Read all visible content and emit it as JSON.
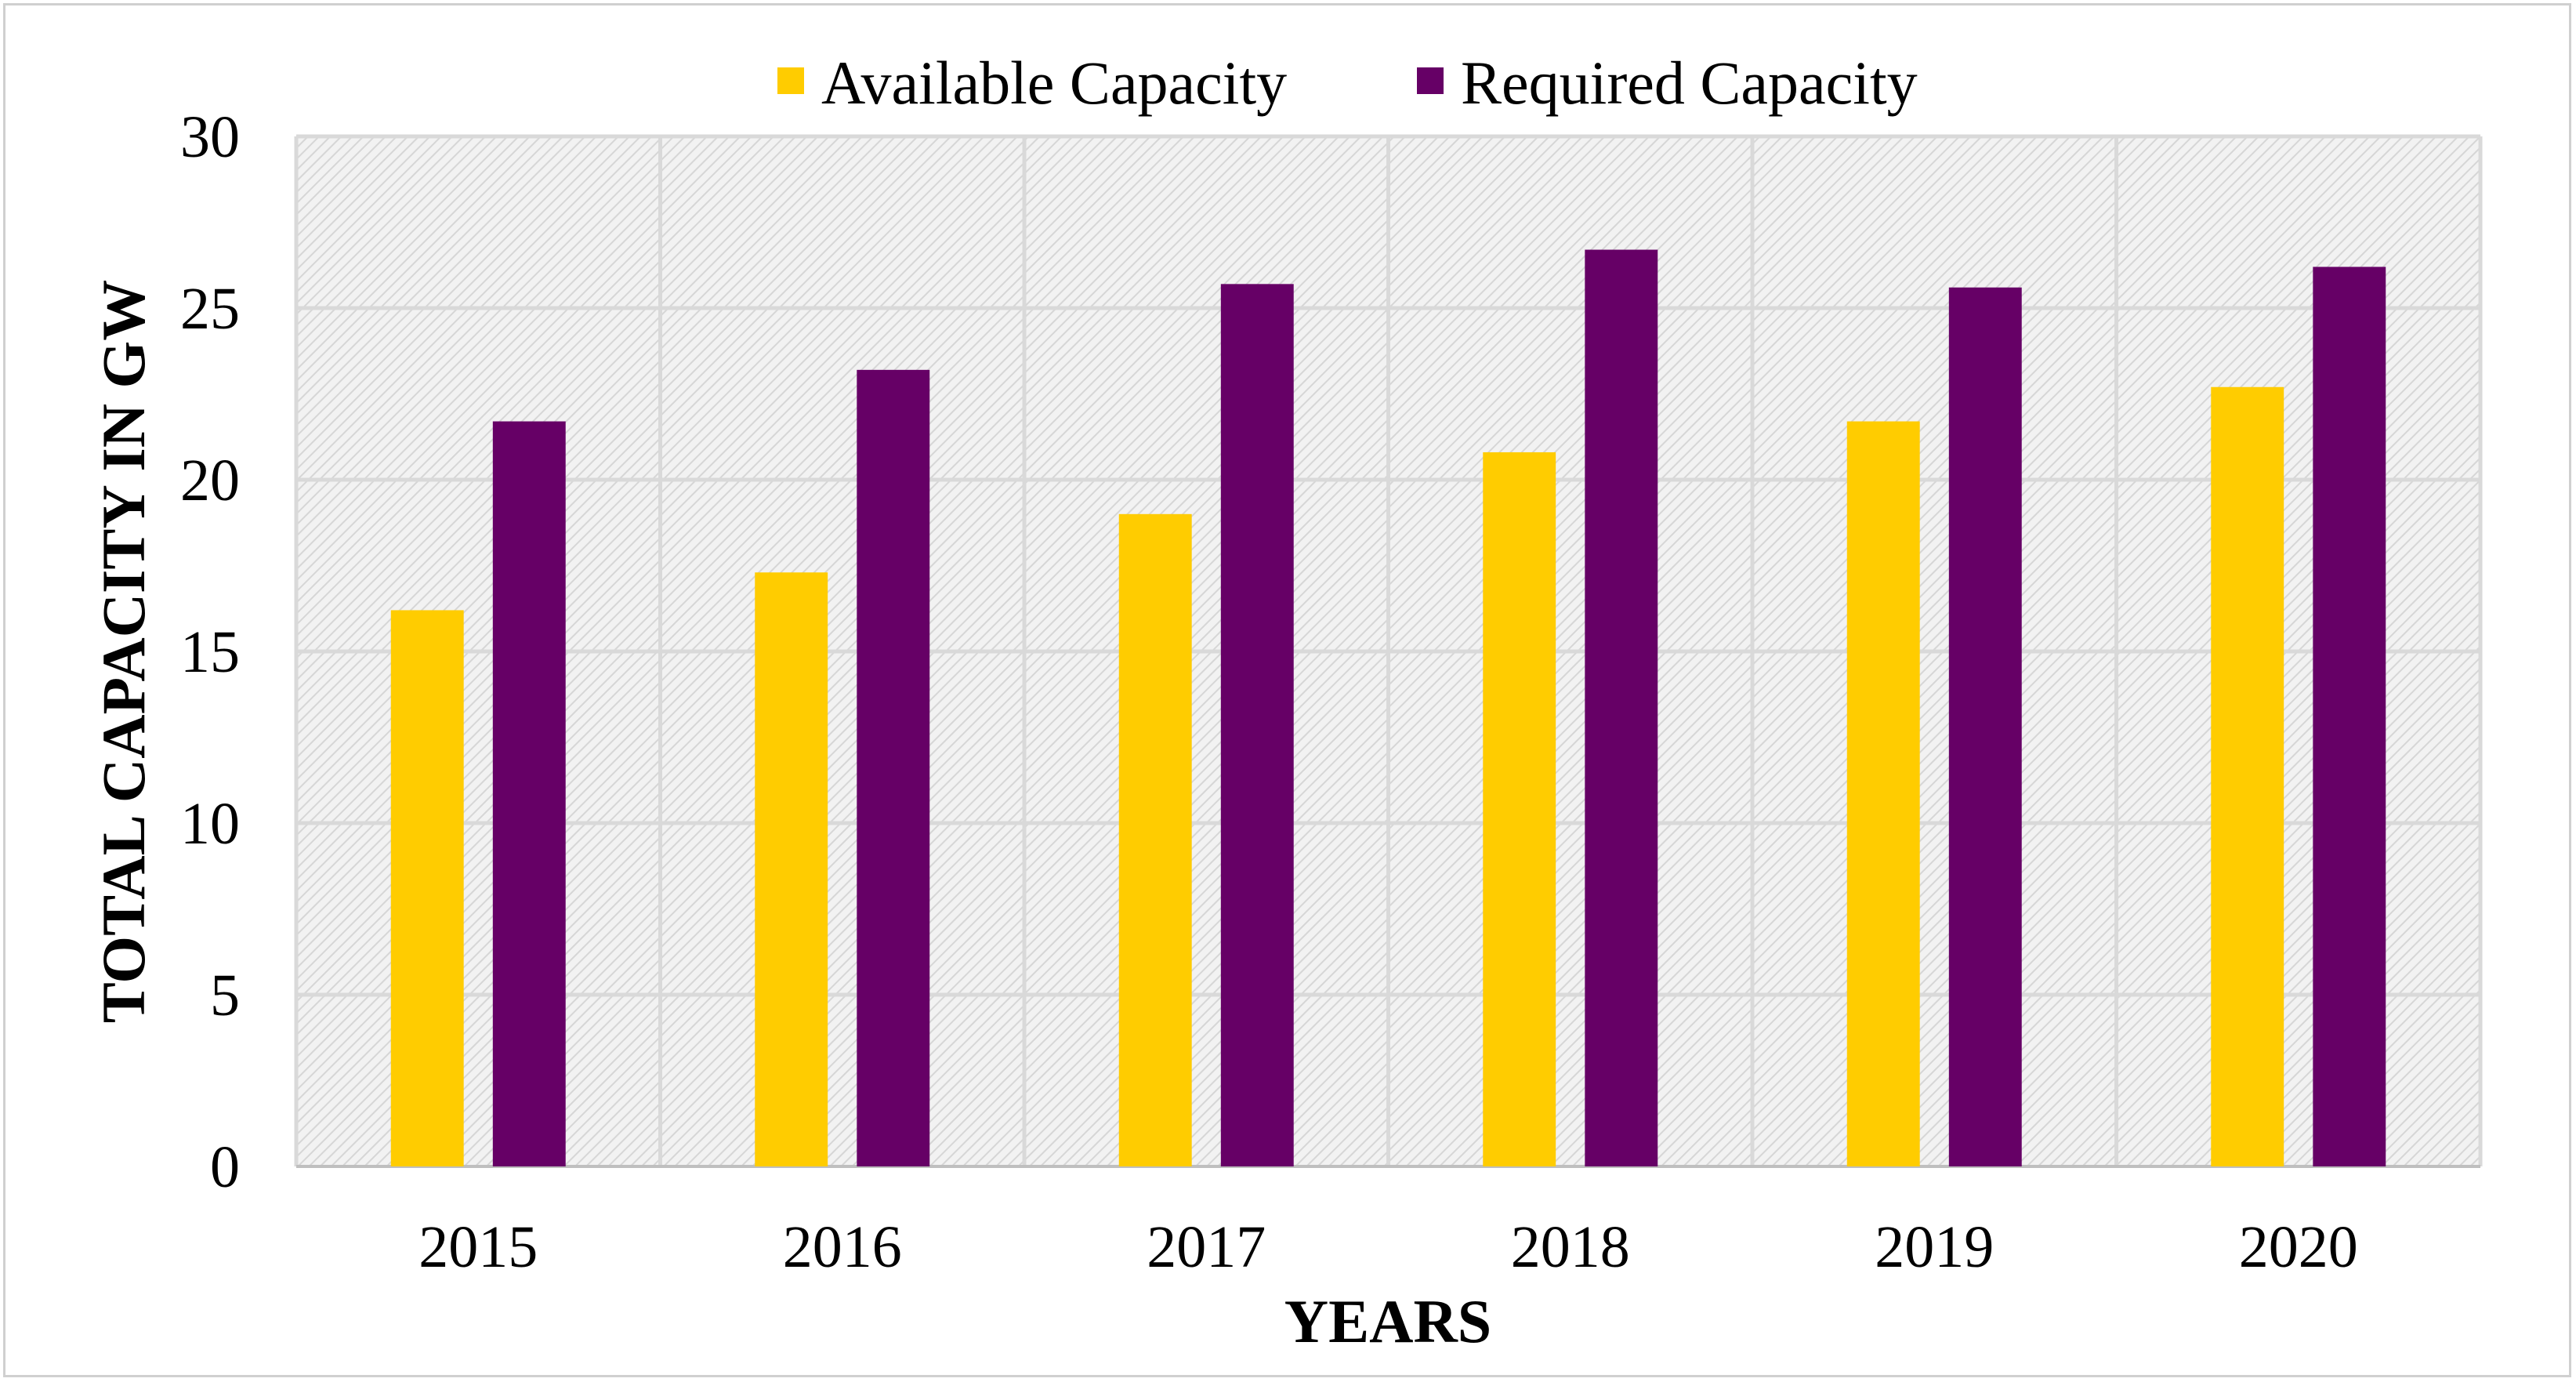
{
  "chart_data": {
    "type": "bar",
    "title": "",
    "categories": [
      "2015",
      "2016",
      "2017",
      "2018",
      "2019",
      "2020"
    ],
    "series": [
      {
        "name": "Available Capacity",
        "color": "#ffcc00",
        "values": [
          16.2,
          17.3,
          19.0,
          20.8,
          21.7,
          22.7
        ]
      },
      {
        "name": "Required Capacity",
        "color": "#660066",
        "values": [
          21.7,
          23.2,
          25.7,
          26.7,
          25.6,
          26.2
        ]
      }
    ],
    "xlabel": "YEARS",
    "ylabel": "TOTAL CAPACITY IN GW",
    "ylim": [
      0,
      30
    ],
    "yticks": [
      "0",
      "5",
      "10",
      "15",
      "20",
      "25",
      "30"
    ],
    "grid": true,
    "legend_position": "top"
  }
}
